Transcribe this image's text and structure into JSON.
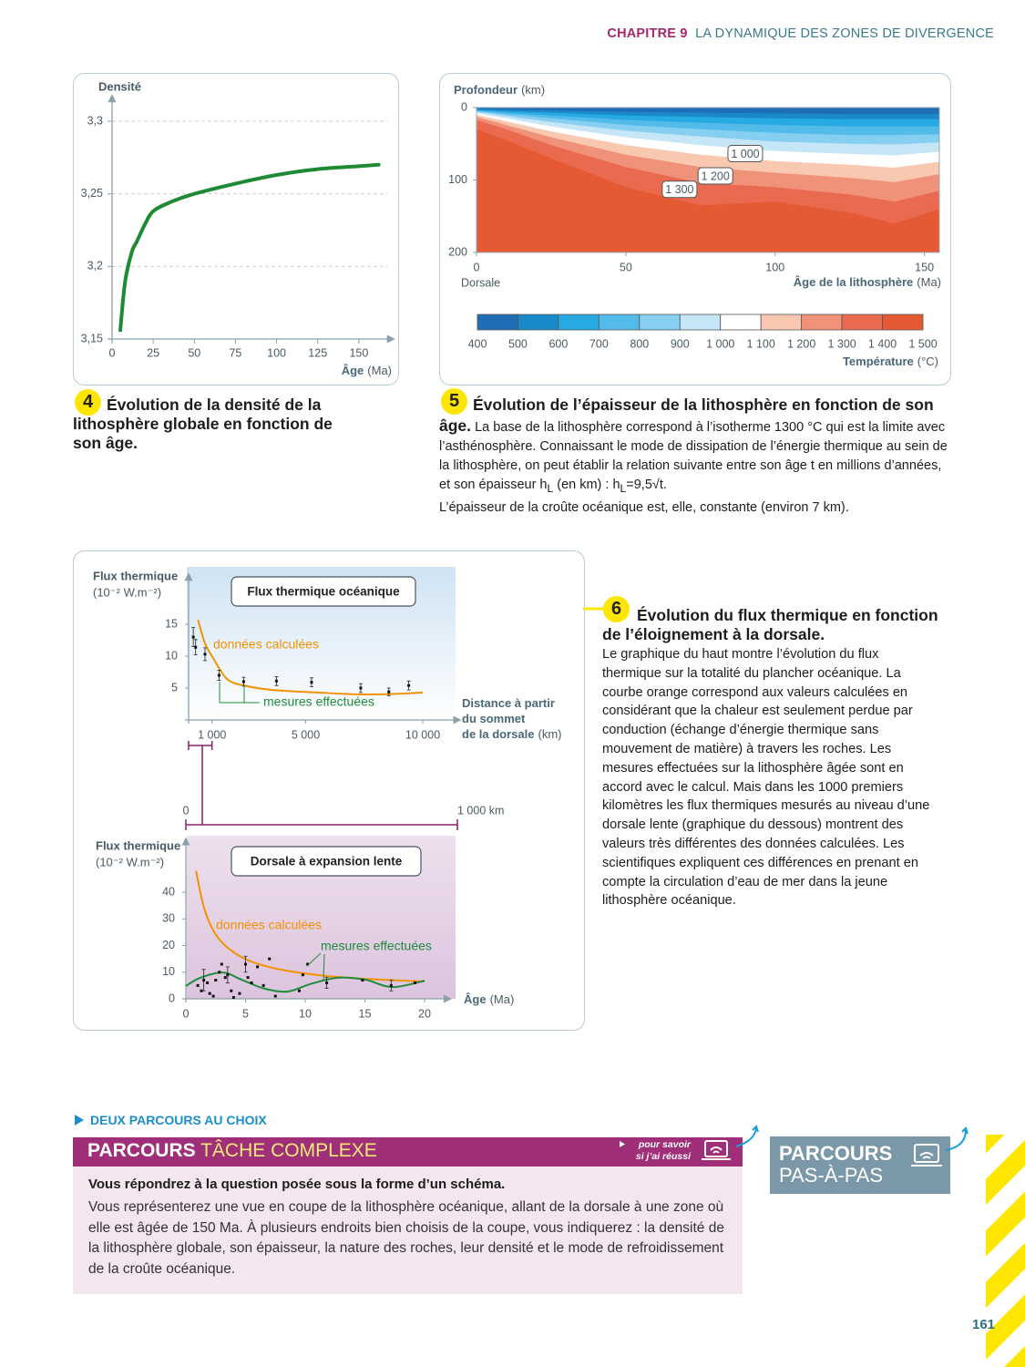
{
  "header": {
    "chapter": "CHAPITRE 9",
    "title": "LA DYNAMIQUE DES ZONES DE DIVERGENCE"
  },
  "doc4": {
    "number": "4",
    "caption": "Évolution de la densité de la lithosphère globale en fonction de son âge.",
    "chart": {
      "type": "line",
      "y_label": "Densité",
      "x_label": "Âge",
      "x_unit": "(Ma)",
      "x": [
        5,
        8,
        12,
        15,
        20,
        25,
        35,
        50,
        75,
        100,
        125,
        150,
        162
      ],
      "series": [
        {
          "color": "#1f8a34",
          "values": [
            3.156,
            3.19,
            3.21,
            3.217,
            3.229,
            3.238,
            3.244,
            3.25,
            3.257,
            3.263,
            3.267,
            3.269,
            3.27
          ]
        }
      ],
      "xlim": [
        0,
        170
      ],
      "xticks": [
        0,
        25,
        50,
        75,
        100,
        125,
        150
      ],
      "ylim": [
        3.15,
        3.3
      ],
      "yticks": [
        {
          "value": 3.15,
          "label": "3,15"
        },
        {
          "value": 3.2,
          "label": "3,2"
        },
        {
          "value": 3.25,
          "label": "3,25"
        },
        {
          "value": 3.3,
          "label": "3,3"
        }
      ],
      "grid": true
    }
  },
  "doc5": {
    "number": "5",
    "title": "Évolution de l’épaisseur de la lithosphère en fonction de son âge.",
    "body": [
      "La base de la lithosphère correspond à l’isotherme 1300 °C qui est la limite avec l’asthénosphère. Connaissant le mode de dissipation de l’énergie thermique au sein de la lithosphère, on peut établir la relation suivante entre son âge t en millions d’années, et son épaisseur h",
      "L",
      " (en km) : h",
      "L",
      "=9,5√t."
    ],
    "body2": "L’épaisseur de la croûte océanique est, elle, constante (environ 7 km).",
    "chart": {
      "type": "contour",
      "y_label": "Profondeur",
      "y_unit": "(km)",
      "x_label": "Âge de la lithosphère",
      "x_unit": "(Ma)",
      "x_origin_label": "Dorsale",
      "x": [
        0,
        10,
        25,
        50,
        75,
        100,
        125,
        140,
        155
      ],
      "xlim": [
        0,
        155
      ],
      "xticks": [
        0,
        50,
        100,
        150
      ],
      "ylim": [
        200,
        0
      ],
      "yticks": [
        0,
        100,
        200
      ],
      "isotherms": [
        {
          "value": 500,
          "depths": [
            2,
            3,
            4,
            6,
            7,
            8,
            9,
            9,
            9
          ]
        },
        {
          "value": 600,
          "depths": [
            3,
            5,
            7,
            11,
            13,
            15,
            16,
            16,
            16
          ]
        },
        {
          "value": 700,
          "depths": [
            4,
            7,
            11,
            17,
            21,
            24,
            26,
            26,
            26
          ]
        },
        {
          "value": 800,
          "depths": [
            5,
            9,
            15,
            24,
            30,
            35,
            38,
            38,
            37
          ]
        },
        {
          "value": 900,
          "depths": [
            6,
            12,
            20,
            32,
            40,
            47,
            50,
            51,
            48
          ]
        },
        {
          "value": 1000,
          "depths": [
            8,
            15,
            26,
            41,
            52,
            60,
            64,
            66,
            61
          ]
        },
        {
          "value": 1100,
          "depths": [
            10,
            19,
            33,
            52,
            65,
            74,
            79,
            83,
            75
          ]
        },
        {
          "value": 1200,
          "depths": [
            13,
            24,
            41,
            65,
            82,
            90,
            97,
            103,
            92
          ]
        },
        {
          "value": 1300,
          "depths": [
            17,
            30,
            52,
            82,
            104,
            110,
            120,
            130,
            115
          ]
        },
        {
          "value": 1400,
          "depths": [
            30,
            45,
            70,
            110,
            135,
            130,
            145,
            160,
            140
          ]
        }
      ],
      "isotherm_labels": [
        {
          "value": 1000,
          "label": "1 000"
        },
        {
          "value": 1200,
          "label": "1 200"
        },
        {
          "value": 1300,
          "label": "1 300"
        }
      ],
      "colorbar": {
        "title": "Température",
        "unit": "(°C)",
        "colors": [
          "#1f6db5",
          "#1a89c9",
          "#27a9e1",
          "#53bbe9",
          "#86cff0",
          "#c4e6f6",
          "#ffffff",
          "#f8c8b0",
          "#f0927a",
          "#ea6a4f",
          "#e65a33"
        ],
        "ticks": [
          400,
          500,
          600,
          700,
          800,
          900,
          {
            "value": 1000,
            "label": "1 000"
          },
          {
            "value": 1100,
            "label": "1 100"
          },
          {
            "value": 1200,
            "label": "1 200"
          },
          {
            "value": 1300,
            "label": "1 300"
          },
          {
            "value": 1400,
            "label": "1 400"
          },
          {
            "value": 1500,
            "label": "1 500"
          }
        ]
      }
    }
  },
  "doc6": {
    "number": "6",
    "title": "Évolution du flux thermique en fonction de l’éloignement à la dorsale.",
    "body": "Le graphique du haut montre l’évolution du flux thermique sur la totalité du plancher océanique. La courbe orange correspond aux valeurs calculées en considérant que la chaleur est seulement perdue par conduction (échange d’énergie thermique sans mouvement de matière) à travers les roches. Les mesures effectuées sur la lithosphère âgée sont en accord avec le calcul. Mais dans les 1000 premiers kilomètres les flux thermiques mesurés au niveau d’une dorsale lente (graphique du dessous) montrent des valeurs très différentes des données calculées. Les scientifiques expliquent ces différences en prenant en compte la circulation d’eau de mer dans la jeune lithosphère océanique.",
    "charts": [
      {
        "type": "scatter-line",
        "title": "Flux thermique océanique",
        "y_label": "Flux thermique",
        "y_unit": "(10⁻² W.m⁻²)",
        "x_label": [
          "Distance à partir",
          "du sommet",
          "de la dorsale"
        ],
        "x_unit": "(km)",
        "xlim": [
          0,
          11500
        ],
        "xticks": [
          {
            "value": 1000,
            "label": "1 000"
          },
          {
            "value": 5000,
            "label": "5 000"
          },
          {
            "value": 10000,
            "label": "10 000"
          }
        ],
        "ylim": [
          0,
          22
        ],
        "yticks": [
          5,
          10,
          15
        ],
        "calculated": {
          "name": "données calculées",
          "color": "#f39200",
          "x": [
            400,
            700,
            1000,
            1650,
            2500,
            3600,
            5500,
            7450,
            9000,
            10000
          ],
          "values": [
            15.7,
            12,
            10,
            6.4,
            5.3,
            4.7,
            4.3,
            4,
            4.1,
            4.3
          ]
        },
        "measured": {
          "name": "mesures effectuées",
          "x": [
            200,
            300,
            700,
            1300,
            2350,
            3750,
            5250,
            7350,
            8550,
            9400
          ],
          "values": [
            13,
            11.4,
            10.3,
            7,
            6,
            6.1,
            5.9,
            5,
            4.4,
            5.4
          ],
          "errors": [
            1.5,
            1.2,
            1,
            0.8,
            0.7,
            0.7,
            0.7,
            0.7,
            0.6,
            0.7
          ]
        }
      },
      {
        "type": "scatter-line",
        "title": "Dorsale à expansion lente",
        "y_label": "Flux thermique",
        "y_unit": "(10⁻² W.m⁻²)",
        "x_label": "Âge",
        "x_unit": "(Ma)",
        "xlim": [
          0,
          22
        ],
        "xticks": [
          0,
          5,
          10,
          15,
          20
        ],
        "ylim": [
          0,
          58
        ],
        "yticks": [
          0,
          10,
          20,
          30,
          40
        ],
        "calculated": {
          "name": "données calculées",
          "color": "#f39200",
          "x": [
            0.85,
            1.6,
            2.75,
            4.65,
            7.3,
            11.1,
            15,
            20
          ],
          "values": [
            48,
            33,
            22.6,
            15.7,
            11.6,
            8.9,
            7.5,
            6.5
          ]
        },
        "measured": {
          "name": "mesures effectuées",
          "curve_color": "#1e8c3a",
          "curve_x": [
            0,
            1.2,
            3.1,
            4.65,
            6.6,
            8.5,
            10.4,
            12.7,
            15,
            17.3,
            20
          ],
          "curve_values": [
            4.8,
            7.9,
            9.9,
            7.2,
            3.8,
            2.7,
            5.5,
            7.9,
            7.2,
            4.4,
            6.8
          ],
          "x": [
            1.0,
            1.3,
            1.5,
            1.8,
            2.0,
            2.3,
            2.5,
            2.8,
            3.0,
            3.3,
            3.5,
            3.8,
            4.0,
            4.5,
            5.0,
            5.2,
            5.5,
            6.0,
            6.5,
            7.0,
            7.5,
            9.5,
            9.8,
            10.2,
            11.8,
            14.8,
            17.2,
            19.2
          ],
          "values": [
            5,
            3,
            7,
            6,
            2,
            1,
            7,
            10,
            13,
            8,
            9,
            3,
            0.5,
            2,
            13,
            8,
            6,
            12,
            5,
            15,
            1,
            3,
            9,
            13,
            6,
            7,
            5,
            6
          ],
          "errors": [
            null,
            null,
            4,
            null,
            null,
            null,
            null,
            null,
            null,
            null,
            3,
            null,
            null,
            null,
            3,
            null,
            null,
            null,
            null,
            null,
            null,
            null,
            null,
            null,
            2,
            null,
            2,
            null
          ]
        }
      }
    ],
    "zoom": {
      "xlim": [
        0,
        1000
      ],
      "ticks": [
        0,
        {
          "value": 1000,
          "label": "1 000 km"
        }
      ]
    }
  },
  "parcours": {
    "intro": "DEUX PARCOURS AU CHOIX",
    "complex": {
      "strong": "PARCOURS",
      "light": "TÂCHE COMPLEXE",
      "hint": [
        "pour savoir",
        "si j’ai réussi"
      ]
    },
    "question": "Vous répondrez à la question posée sous la forme d’un schéma.",
    "text": "Vous représenterez une vue en coupe de la lithosphère océanique, allant de la dorsale à une zone où elle est âgée de 150 Ma. À plusieurs endroits bien choisis de la coupe, vous indiquerez : la densité de la lithosphère globale, son épaisseur, la nature des roches, leur densité et le mode de refroidissement de la croûte océanique.",
    "steps": {
      "strong": "PARCOURS",
      "light": "PAS-À-PAS"
    }
  },
  "page_number": "161"
}
